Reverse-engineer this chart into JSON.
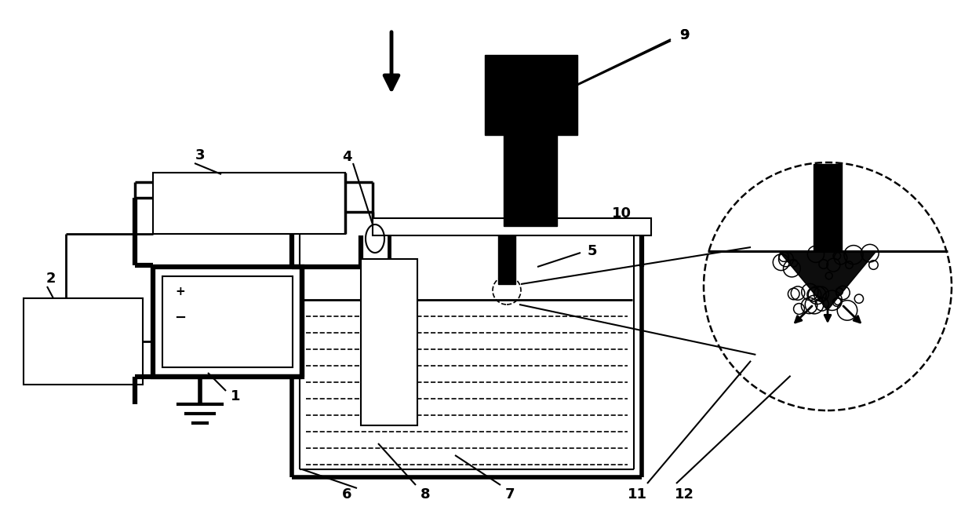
{
  "bg": "#ffffff",
  "fw": 12.39,
  "fh": 6.6,
  "dpi": 100
}
